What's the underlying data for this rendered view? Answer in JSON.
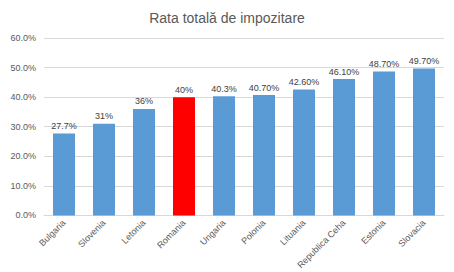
{
  "chart_data": {
    "type": "bar",
    "title": "Rata totală de impozitare",
    "categories": [
      "Bulgaria",
      "Slovenia",
      "Letonia",
      "Romania",
      "Ungaria",
      "Polonia",
      "Lituania",
      "Republica Ceha",
      "Estonia",
      "Slovacia"
    ],
    "values": [
      27.7,
      31,
      36,
      40,
      40.3,
      40.7,
      42.6,
      46.1,
      48.7,
      49.7
    ],
    "value_labels": [
      "27.7%",
      "31%",
      "36%",
      "40%",
      "40.3%",
      "40.70%",
      "42.60%",
      "46.10%",
      "48.70%",
      "49.70%"
    ],
    "colors": [
      "#5b9bd5",
      "#5b9bd5",
      "#5b9bd5",
      "#ff0000",
      "#5b9bd5",
      "#5b9bd5",
      "#5b9bd5",
      "#5b9bd5",
      "#5b9bd5",
      "#5b9bd5"
    ],
    "ylim": [
      0,
      60
    ],
    "yticks": [
      {
        "value": 0,
        "label": "0.0%"
      },
      {
        "value": 10,
        "label": "10.0%"
      },
      {
        "value": 20,
        "label": "20.0%"
      },
      {
        "value": 30,
        "label": "30.0%"
      },
      {
        "value": 40,
        "label": "40.0%"
      },
      {
        "value": 50,
        "label": "50.0%"
      },
      {
        "value": 60,
        "label": "60.0%"
      }
    ],
    "grid": true,
    "data_labels": true
  }
}
